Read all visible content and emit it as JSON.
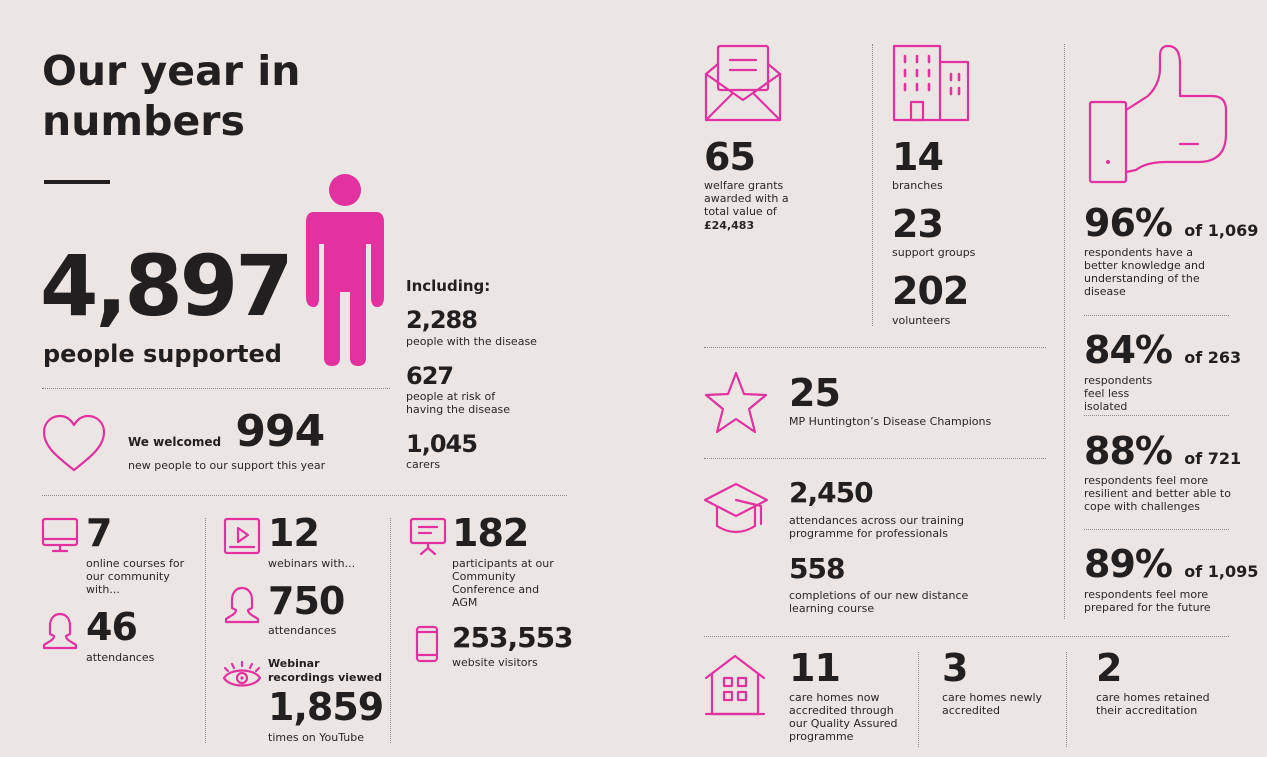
{
  "title": "Our year in numbers",
  "accent": "#e3319f",
  "hero": {
    "value": "4,897",
    "label": "people supported"
  },
  "including": {
    "label": "Including:",
    "items": [
      {
        "value": "2,288",
        "label": "people with the disease"
      },
      {
        "value": "627",
        "label": "people at risk of having the disease"
      },
      {
        "value": "1,045",
        "label": "carers"
      }
    ]
  },
  "welcomed": {
    "prefix": "We welcomed",
    "value": "994",
    "label": "new people to our support this year"
  },
  "courses": {
    "value": "7",
    "label": "online courses for our community with...",
    "att_value": "46",
    "att_label": "attendances"
  },
  "webinars": {
    "value": "12",
    "label": "webinars with...",
    "att_value": "750",
    "att_label": "attendances",
    "rec_label": "Webinar recordings viewed",
    "rec_value": "1,859",
    "rec_sub": "times on YouTube"
  },
  "conference": {
    "value": "182",
    "label": "participants at our Community Conference and AGM"
  },
  "website": {
    "value": "253,553",
    "label": "website visitors"
  },
  "grants": {
    "value": "65",
    "label": "welfare grants awarded with a total value of",
    "amount": "£24,483"
  },
  "branches": {
    "value": "14",
    "label": "branches"
  },
  "groups": {
    "value": "23",
    "label": "support groups"
  },
  "volunteers": {
    "value": "202",
    "label": "volunteers"
  },
  "champions": {
    "value": "25",
    "label": "MP Huntington’s Disease Champions"
  },
  "training": {
    "value": "2,450",
    "label": "attendances across our training programme for professionals"
  },
  "distance": {
    "value": "558",
    "label": "completions of our new distance learning course"
  },
  "survey": [
    {
      "pct": "96%",
      "of": "of 1,069",
      "label": "respondents have a better knowledge and understanding of the disease"
    },
    {
      "pct": "84%",
      "of": "of 263",
      "label": "respondents feel less isolated"
    },
    {
      "pct": "88%",
      "of": "of 721",
      "label": "respondents feel more resilient and better able to cope with challenges"
    },
    {
      "pct": "89%",
      "of": "of 1,095",
      "label": "respondents feel more prepared for the future"
    }
  ],
  "carehomes": [
    {
      "value": "11",
      "label": "care homes now accredited through our Quality Assured programme"
    },
    {
      "value": "3",
      "label": "care homes newly accredited"
    },
    {
      "value": "2",
      "label": "care homes retained their accreditation"
    }
  ]
}
